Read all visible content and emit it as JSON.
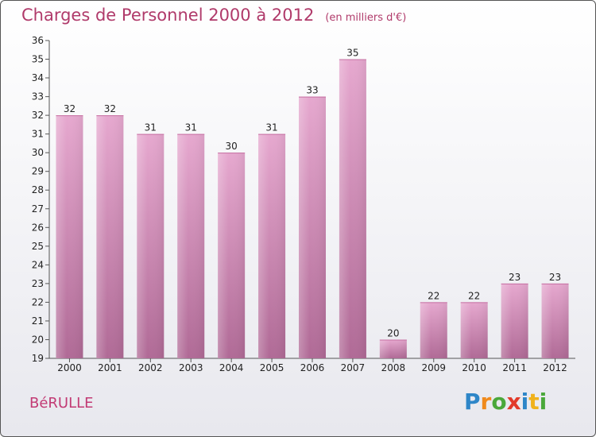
{
  "chart_data": {
    "type": "bar",
    "title": "Charges de Personnel 2000 à 2012",
    "subtitle": "(en milliers d'€)",
    "categories": [
      "2000",
      "2001",
      "2002",
      "2003",
      "2004",
      "2005",
      "2006",
      "2007",
      "2008",
      "2009",
      "2010",
      "2011",
      "2012"
    ],
    "values": [
      32,
      32,
      31,
      31,
      30,
      31,
      33,
      35,
      20,
      22,
      22,
      23,
      23
    ],
    "ylim": [
      19,
      36
    ],
    "yticks": [
      19,
      20,
      21,
      22,
      23,
      24,
      25,
      26,
      27,
      28,
      29,
      30,
      31,
      32,
      33,
      34,
      35,
      36
    ],
    "grid": false,
    "bar_color": "#d88ab8"
  },
  "footer": {
    "commune": "BéRULLE",
    "logo_letters": [
      {
        "ch": "P",
        "color": "#2e86c8"
      },
      {
        "ch": "r",
        "color": "#f08a1c"
      },
      {
        "ch": "o",
        "color": "#4aa83a"
      },
      {
        "ch": "x",
        "color": "#e23a2a"
      },
      {
        "ch": "i",
        "color": "#2e86c8"
      },
      {
        "ch": "t",
        "color": "#f0b21c"
      },
      {
        "ch": "i",
        "color": "#4aa83a"
      }
    ]
  }
}
